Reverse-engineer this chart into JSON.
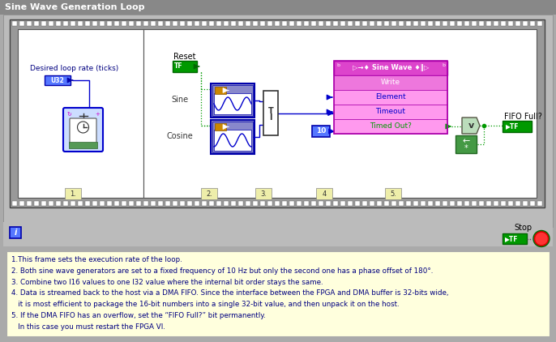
{
  "title": "Sine Wave Generation Loop",
  "title_bg": "#888888",
  "title_fg": "#ffffff",
  "bg_color": "#aaaaaa",
  "note_bg": "#ffffdd",
  "note_border": "#aaaaaa",
  "note_text_color": "#000080",
  "note_lines": [
    "1.This frame sets the execution rate of the loop.",
    "2. Both sine wave generators are set to a fixed frequency of 10 Hz but only the second one has a phase offset of 180°.",
    "3. Combine two I16 values to one I32 value where the internal bit order stays the same.",
    "4. Data is streamed back to the host via a DMA FIFO. Since the interface between the FPGA and DMA buffer is 32-bits wide,",
    "   it is most efficient to package the 16-bit numbers into a single 32-bit value, and then unpack it on the host.",
    "5. If the DMA FIFO has an overflow, set the “FIFO Full?” bit permanently.",
    "   In this case you must restart the FPGA VI."
  ],
  "fifo_header_bg": "#cc44cc",
  "fifo_body_bg": "#ff88ff",
  "fifo_row_bg": "#ffffff",
  "fifo_border": "#aa00aa",
  "wire_blue": "#0000cc",
  "wire_green_dash": "#009900",
  "green_btn": "#009900",
  "green_btn_dark": "#006600",
  "blue_ctrl": "#0055cc",
  "loop_outer_bg": "#aaaaaa",
  "loop_inner_bg": "#ffffff",
  "film_dot": "#ffffff",
  "film_bg": "#888888"
}
